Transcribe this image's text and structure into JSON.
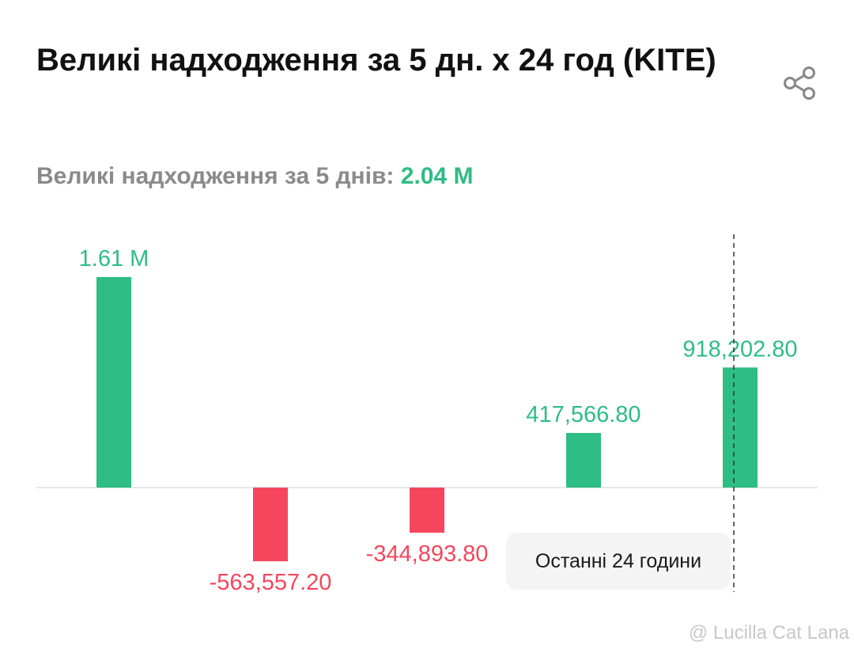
{
  "header": {
    "title": "Великі надходження за 5 дн. x 24 год (KITE)",
    "share_icon": "share-icon"
  },
  "summary": {
    "label": "Великі надходження за 5 днів:",
    "value": "2.04 M"
  },
  "tooltip": {
    "label": "Останні 24 години"
  },
  "watermark": {
    "text": "@ Lucilla Cat Lana"
  },
  "colors": {
    "positive": "#2ebd85",
    "negative": "#f6465d",
    "axis": "#e6e6e6",
    "marker": "#333333"
  },
  "chart_data": {
    "type": "bar",
    "title": "Великі надходження за 5 дн. x 24 год (KITE)",
    "categories": [
      "",
      "",
      "",
      "",
      ""
    ],
    "values": [
      1610000,
      -563557.2,
      -344893.8,
      417566.8,
      918202.8
    ],
    "data_labels": [
      "1.61 M",
      "-563,557.20",
      "-344,893.80",
      "417,566.80",
      "918,202.80"
    ],
    "xlabel": "",
    "ylabel": "",
    "grid": false,
    "legend": "none",
    "highlight_index": 4
  }
}
